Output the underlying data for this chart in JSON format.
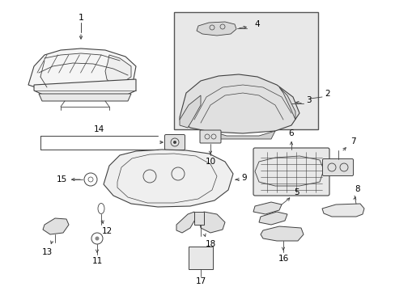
{
  "bg_color": "#ffffff",
  "line_color": "#404040",
  "fig_width": 4.89,
  "fig_height": 3.6,
  "dpi": 100
}
